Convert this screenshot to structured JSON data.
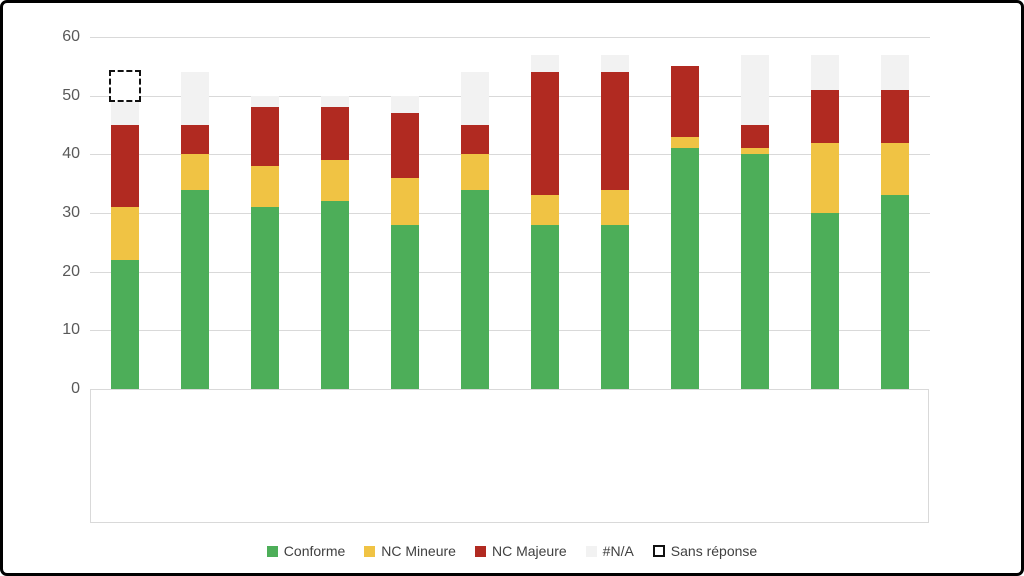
{
  "frame": {
    "border_color": "#000000",
    "background_color": "#ffffff"
  },
  "chart_data": {
    "type": "bar",
    "stacked": true,
    "title": "",
    "xlabel": "",
    "ylabel": "",
    "ylim": [
      0,
      60
    ],
    "yticks": [
      "0",
      "10",
      "20",
      "30",
      "40",
      "50",
      "60"
    ],
    "grid": "horizontal",
    "gridline_color": "#d9d9d9",
    "tick_label_color": "#595959",
    "legend_position": "bottom",
    "legend_text_color": "#404040",
    "categories": [
      "",
      "",
      "",
      "",
      "",
      "",
      "",
      "",
      "",
      "",
      "",
      ""
    ],
    "series": [
      {
        "name": "Conforme",
        "color": "#4dae59",
        "style": "solid",
        "values": [
          22,
          34,
          31,
          32,
          28,
          34,
          28,
          28,
          41,
          40,
          30,
          33
        ]
      },
      {
        "name": "NC Mineure",
        "color": "#f0c344",
        "style": "solid",
        "values": [
          9,
          6,
          7,
          7,
          8,
          6,
          5,
          6,
          2,
          1,
          12,
          9
        ]
      },
      {
        "name": "NC Majeure",
        "color": "#b12a21",
        "style": "solid",
        "values": [
          14,
          5,
          10,
          9,
          11,
          5,
          21,
          20,
          12,
          4,
          9,
          9
        ]
      },
      {
        "name": "#N/A",
        "color": "#f2f2f2",
        "style": "solid",
        "values": [
          4,
          9,
          2,
          2,
          3,
          9,
          3,
          3,
          0,
          12,
          6,
          6
        ]
      },
      {
        "name": "Sans réponse",
        "color": "#ffffff",
        "style": "dashed-outline",
        "values": [
          5,
          0,
          0,
          0,
          0,
          0,
          0,
          0,
          0,
          0,
          0,
          0
        ]
      }
    ],
    "bar_totals": [
      54,
      54,
      50,
      50,
      50,
      54,
      57,
      57,
      55,
      57,
      57,
      57
    ]
  }
}
